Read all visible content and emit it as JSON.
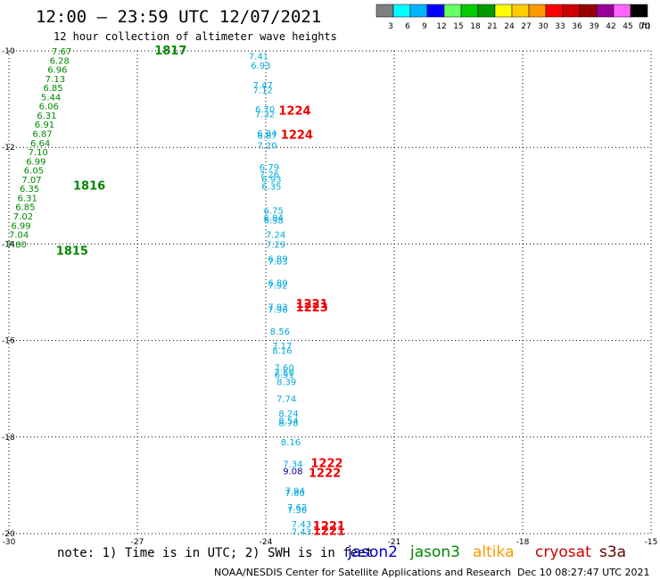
{
  "header": {
    "title": "12:00 – 23:59 UTC 12/07/2021",
    "subtitle": "12 hour collection of altimeter wave heights"
  },
  "scale": {
    "unit": "(ft)",
    "labels": [
      "3",
      "6",
      "9",
      "12",
      "15",
      "18",
      "21",
      "24",
      "27",
      "30",
      "33",
      "36",
      "39",
      "42",
      "45",
      "70"
    ],
    "colors": [
      "#7f7f7f",
      "#00ffff",
      "#00b4ff",
      "#0000ff",
      "#66ff66",
      "#00cc00",
      "#009900",
      "#ffff00",
      "#ffcc00",
      "#ff9900",
      "#ff0000",
      "#cc0000",
      "#990000",
      "#990099",
      "#ff66ff",
      "#000000"
    ]
  },
  "axes": {
    "lat_labels": [
      "-10",
      "-12",
      "-14",
      "-16",
      "-18",
      "-20"
    ],
    "lat_values": [
      -10,
      -12,
      -14,
      -16,
      -18,
      -20
    ],
    "lon_labels": [
      "-30",
      "-27",
      "-24",
      "-21",
      "-18",
      "-15"
    ],
    "lon_values": [
      -30,
      -27,
      -24,
      -21,
      -18,
      -15
    ]
  },
  "tracks": [
    {
      "satellite": "jason3",
      "color": "#008800",
      "times": [
        {
          "label": "1817",
          "lon": -26.6,
          "lat": -10.0
        },
        {
          "label": "1816",
          "lon": -28.5,
          "lat": -12.8
        },
        {
          "label": "1815",
          "lon": -28.9,
          "lat": -14.15
        }
      ],
      "points": [
        {
          "v": "7.67",
          "lon": -29.0,
          "lat": -10.0
        },
        {
          "v": "6.28",
          "lon": -29.05,
          "lat": -10.19
        },
        {
          "v": "6.96",
          "lon": -29.1,
          "lat": -10.38
        },
        {
          "v": "7.13",
          "lon": -29.15,
          "lat": -10.57
        },
        {
          "v": "6.85",
          "lon": -29.2,
          "lat": -10.76
        },
        {
          "v": "5.44",
          "lon": -29.25,
          "lat": -10.95
        },
        {
          "v": "6.06",
          "lon": -29.3,
          "lat": -11.14
        },
        {
          "v": "6.31",
          "lon": -29.35,
          "lat": -11.33
        },
        {
          "v": "6.91",
          "lon": -29.4,
          "lat": -11.52
        },
        {
          "v": "6.87",
          "lon": -29.45,
          "lat": -11.71
        },
        {
          "v": "6.64",
          "lon": -29.5,
          "lat": -11.9
        },
        {
          "v": "7.10",
          "lon": -29.55,
          "lat": -12.09
        },
        {
          "v": "6.99",
          "lon": -29.6,
          "lat": -12.28
        },
        {
          "v": "6.05",
          "lon": -29.65,
          "lat": -12.47
        },
        {
          "v": "7.07",
          "lon": -29.7,
          "lat": -12.66
        },
        {
          "v": "6.35",
          "lon": -29.75,
          "lat": -12.85
        },
        {
          "v": "6.31",
          "lon": -29.8,
          "lat": -13.04
        },
        {
          "v": "6.85",
          "lon": -29.85,
          "lat": -13.23
        },
        {
          "v": "7.02",
          "lon": -29.9,
          "lat": -13.42
        },
        {
          "v": "6.99",
          "lon": -29.95,
          "lat": -13.61
        },
        {
          "v": "7.04",
          "lon": -30.0,
          "lat": -13.8
        },
        {
          "v": "7.80",
          "lon": -30.05,
          "lat": -14.0
        }
      ]
    },
    {
      "satellite": "jason3",
      "color": "#00aadd",
      "times": [],
      "points": [
        {
          "v": "7.41",
          "lon": -24.4,
          "lat": -10.1
        },
        {
          "v": "6.93",
          "lon": -24.35,
          "lat": -10.3
        },
        {
          "v": "7.47",
          "lon": -24.3,
          "lat": -10.7
        },
        {
          "v": "7.12",
          "lon": -24.3,
          "lat": -10.8
        },
        {
          "v": "6.70",
          "lon": -24.25,
          "lat": -11.2
        },
        {
          "v": "7.32",
          "lon": -24.25,
          "lat": -11.3
        },
        {
          "v": "6.84",
          "lon": -24.2,
          "lat": -11.7
        },
        {
          "v": "6.87",
          "lon": -24.2,
          "lat": -11.75
        },
        {
          "v": "7.20",
          "lon": -24.2,
          "lat": -11.95
        },
        {
          "v": "6.79",
          "lon": -24.15,
          "lat": -12.4
        },
        {
          "v": "7.26",
          "lon": -24.15,
          "lat": -12.55
        },
        {
          "v": "6.93",
          "lon": -24.1,
          "lat": -12.65
        },
        {
          "v": "6.35",
          "lon": -24.1,
          "lat": -12.8
        },
        {
          "v": "6.75",
          "lon": -24.05,
          "lat": -13.3
        },
        {
          "v": "6.94",
          "lon": -24.05,
          "lat": -13.45
        },
        {
          "v": "6.98",
          "lon": -24.05,
          "lat": -13.5
        },
        {
          "v": "7.24",
          "lon": -24.0,
          "lat": -13.8
        },
        {
          "v": "7.29",
          "lon": -24.0,
          "lat": -14.0
        },
        {
          "v": "6.89",
          "lon": -23.95,
          "lat": -14.3
        },
        {
          "v": "7.03",
          "lon": -23.95,
          "lat": -14.35
        },
        {
          "v": "6.80",
          "lon": -23.95,
          "lat": -14.8
        },
        {
          "v": "7.92",
          "lon": -23.95,
          "lat": -14.85
        },
        {
          "v": "7.93",
          "lon": -23.95,
          "lat": -15.3
        },
        {
          "v": "7.96",
          "lon": -23.95,
          "lat": -15.35
        },
        {
          "v": "8.56",
          "lon": -23.9,
          "lat": -15.8
        },
        {
          "v": "7.17",
          "lon": -23.85,
          "lat": -16.1
        },
        {
          "v": "8.16",
          "lon": -23.85,
          "lat": -16.2
        },
        {
          "v": "7.60",
          "lon": -23.8,
          "lat": -16.55
        },
        {
          "v": "7.50",
          "lon": -23.8,
          "lat": -16.65
        },
        {
          "v": "6.51",
          "lon": -23.8,
          "lat": -16.7
        },
        {
          "v": "8.39",
          "lon": -23.75,
          "lat": -16.85
        },
        {
          "v": "7.74",
          "lon": -23.75,
          "lat": -17.2
        },
        {
          "v": "8.24",
          "lon": -23.7,
          "lat": -17.5
        },
        {
          "v": "8.54",
          "lon": -23.7,
          "lat": -17.65
        },
        {
          "v": "8.78",
          "lon": -23.7,
          "lat": -17.7
        },
        {
          "v": "8.16",
          "lon": -23.65,
          "lat": -18.1
        },
        {
          "v": "7.34",
          "lon": -23.6,
          "lat": -18.55
        },
        {
          "v": "7.94",
          "lon": -23.55,
          "lat": -19.1
        },
        {
          "v": "7.60",
          "lon": -23.55,
          "lat": -19.15
        },
        {
          "v": "7.62",
          "lon": -23.5,
          "lat": -19.45
        },
        {
          "v": "7.30",
          "lon": -23.5,
          "lat": -19.5
        },
        {
          "v": "7.43",
          "lon": -23.4,
          "lat": -19.8
        },
        {
          "v": "7.43",
          "lon": -23.4,
          "lat": -19.95
        }
      ]
    },
    {
      "satellite": "jason2",
      "color": "#000099",
      "times": [],
      "points": [
        {
          "v": "9.08",
          "lon": -23.6,
          "lat": -18.7
        }
      ]
    },
    {
      "satellite": "cryosat",
      "color": "#ee0000",
      "times": [
        {
          "label": "1224",
          "lon": -23.7,
          "lat": -11.25
        },
        {
          "label": "1224",
          "lon": -23.65,
          "lat": -11.75
        },
        {
          "label": "1221",
          "lon": -23.3,
          "lat": -15.25
        },
        {
          "label": "1223",
          "lon": -23.3,
          "lat": -15.32
        },
        {
          "label": "1222",
          "lon": -22.95,
          "lat": -18.55
        },
        {
          "label": "1222",
          "lon": -23.0,
          "lat": -18.75
        },
        {
          "label": "1221",
          "lon": -22.9,
          "lat": -19.85
        },
        {
          "label": "1221",
          "lon": -22.9,
          "lat": -19.95
        }
      ],
      "points": []
    }
  ],
  "footer": {
    "note": "note:  1) Time is in UTC; 2) SWH is in feet",
    "satellites": [
      {
        "name": "jason2",
        "color": "#0000cc"
      },
      {
        "name": "jason3",
        "color": "#008800"
      },
      {
        "name": "altika",
        "color": "#ff9900"
      },
      {
        "name": "cryosat",
        "color": "#cc0000"
      },
      {
        "name": "s3a",
        "color": "#660000"
      }
    ],
    "credit": "NOAA/NESDIS Center for Satellite Applications and Research",
    "timestamp": "Dec 10 08:27:47 UTC 2021"
  }
}
